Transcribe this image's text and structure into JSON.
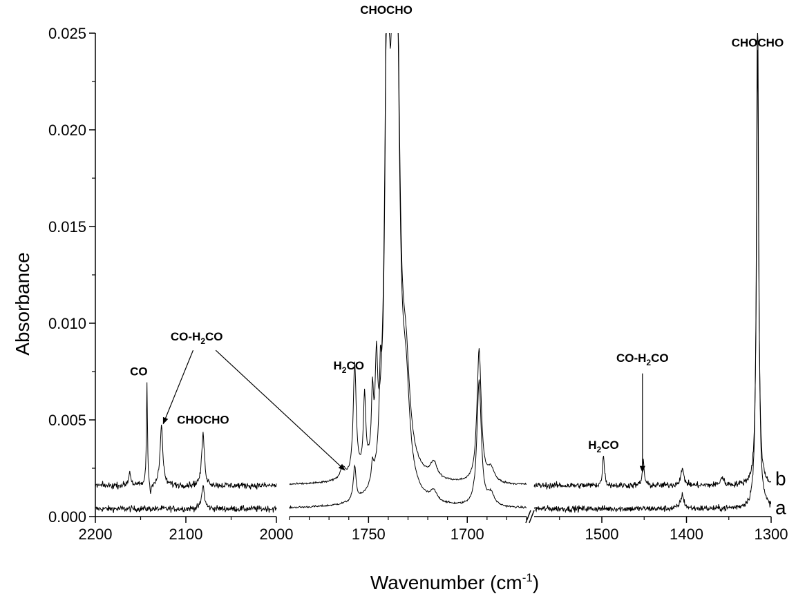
{
  "chart_data": {
    "type": "line",
    "title": "",
    "xlabel": "Wavenumber (cm",
    "xlabel_sup": "-1",
    "xlabel_end": ")",
    "ylabel": "Absorbance",
    "ylim": [
      0,
      0.025
    ],
    "grid": false,
    "legend": "none",
    "x_axis_reversed": true,
    "x_axis_segments": [
      {
        "range": [
          2200,
          2000
        ],
        "ticks": [
          "2200",
          "2100",
          "2000"
        ]
      },
      {
        "range": [
          1790,
          1670
        ],
        "ticks": [
          "1750",
          "1700"
        ]
      },
      {
        "range": [
          1580,
          1300
        ],
        "ticks": [
          "1500",
          "1400",
          "1300"
        ]
      }
    ],
    "y_ticks": [
      "0.000",
      "0.005",
      "0.010",
      "0.015",
      "0.020",
      "0.025"
    ],
    "series": [
      {
        "name": "a",
        "baseline": 0.0004,
        "noise": 8e-05,
        "peaks": [
          {
            "x": 2081,
            "height": 0.0012,
            "width": 1.8
          },
          {
            "x": 1757,
            "height": 0.0018,
            "width": 0.8
          },
          {
            "x": 1748,
            "height": 0.0009,
            "width": 0.7
          },
          {
            "x": 1744,
            "height": 0.0035,
            "width": 0.6
          },
          {
            "x": 1740.5,
            "height": 0.025,
            "width": 1.2
          },
          {
            "x": 1736.5,
            "height": 0.04,
            "width": 1.8
          },
          {
            "x": 1731,
            "height": 0.004,
            "width": 2.2
          },
          {
            "x": 1717,
            "height": 0.0005,
            "width": 2.0
          },
          {
            "x": 1694,
            "height": 0.0065,
            "width": 1.3
          },
          {
            "x": 1688,
            "height": 0.0006,
            "width": 2.0
          },
          {
            "x": 1405,
            "height": 0.0007,
            "width": 2.5
          },
          {
            "x": 1316,
            "height": 0.027,
            "width": 1.5
          }
        ]
      },
      {
        "name": "b",
        "baseline": 0.0016,
        "noise": 8e-05,
        "peaks": [
          {
            "x": 2162,
            "height": 0.0007,
            "width": 1.5
          },
          {
            "x": 2143,
            "height": 0.0053,
            "width": 0.7
          },
          {
            "x": 2139,
            "height": -0.0006,
            "width": 0.9
          },
          {
            "x": 2127,
            "height": 0.0031,
            "width": 1.8
          },
          {
            "x": 2081,
            "height": 0.0027,
            "width": 1.8
          },
          {
            "x": 1763,
            "height": 0.0006,
            "width": 1.6
          },
          {
            "x": 1757,
            "height": 0.0058,
            "width": 0.9
          },
          {
            "x": 1752,
            "height": 0.0038,
            "width": 0.7
          },
          {
            "x": 1748,
            "height": 0.0033,
            "width": 0.6
          },
          {
            "x": 1746,
            "height": 0.0045,
            "width": 0.7
          },
          {
            "x": 1740.5,
            "height": 0.025,
            "width": 1.2
          },
          {
            "x": 1736.5,
            "height": 0.04,
            "width": 1.8
          },
          {
            "x": 1731,
            "height": 0.004,
            "width": 2.2
          },
          {
            "x": 1717,
            "height": 0.0008,
            "width": 2.0
          },
          {
            "x": 1694,
            "height": 0.0069,
            "width": 1.3
          },
          {
            "x": 1688,
            "height": 0.0007,
            "width": 2.0
          },
          {
            "x": 1498,
            "height": 0.0016,
            "width": 1.3
          },
          {
            "x": 1451,
            "height": 0.0013,
            "width": 1.3
          },
          {
            "x": 1405,
            "height": 0.0008,
            "width": 2.5
          },
          {
            "x": 1358,
            "height": 0.0004,
            "width": 2.5
          },
          {
            "x": 1316,
            "height": 0.0225,
            "width": 1.5
          }
        ]
      }
    ],
    "annotations": [
      {
        "text": "CHOCHO",
        "segment": 1,
        "x": 1741,
        "y": 0.026
      },
      {
        "text": "CHOCHO",
        "segment": 2,
        "x": 1316,
        "y": 0.0243
      },
      {
        "text": "CO",
        "segment": 0,
        "x": 2152,
        "y": 0.0073
      },
      {
        "text": "CO-H",
        "sub": "2",
        "after": "CO",
        "segment": 0,
        "x": 2088,
        "y": 0.0091
      },
      {
        "text": "CHOCHO",
        "segment": 0,
        "x": 2081,
        "y": 0.0048
      },
      {
        "text": "H",
        "sub": "2",
        "after": "CO",
        "segment": 1,
        "x": 1760,
        "y": 0.0076
      },
      {
        "text": "H",
        "sub": "2",
        "after": "CO",
        "segment": 2,
        "x": 1498,
        "y": 0.0035
      },
      {
        "text": "CO-H",
        "sub": "2",
        "after": "CO",
        "segment": 2,
        "x": 1452,
        "y": 0.008
      }
    ],
    "trace_labels": [
      {
        "text": "b",
        "y": 0.0017
      },
      {
        "text": "a",
        "y": 0.0002
      }
    ]
  }
}
